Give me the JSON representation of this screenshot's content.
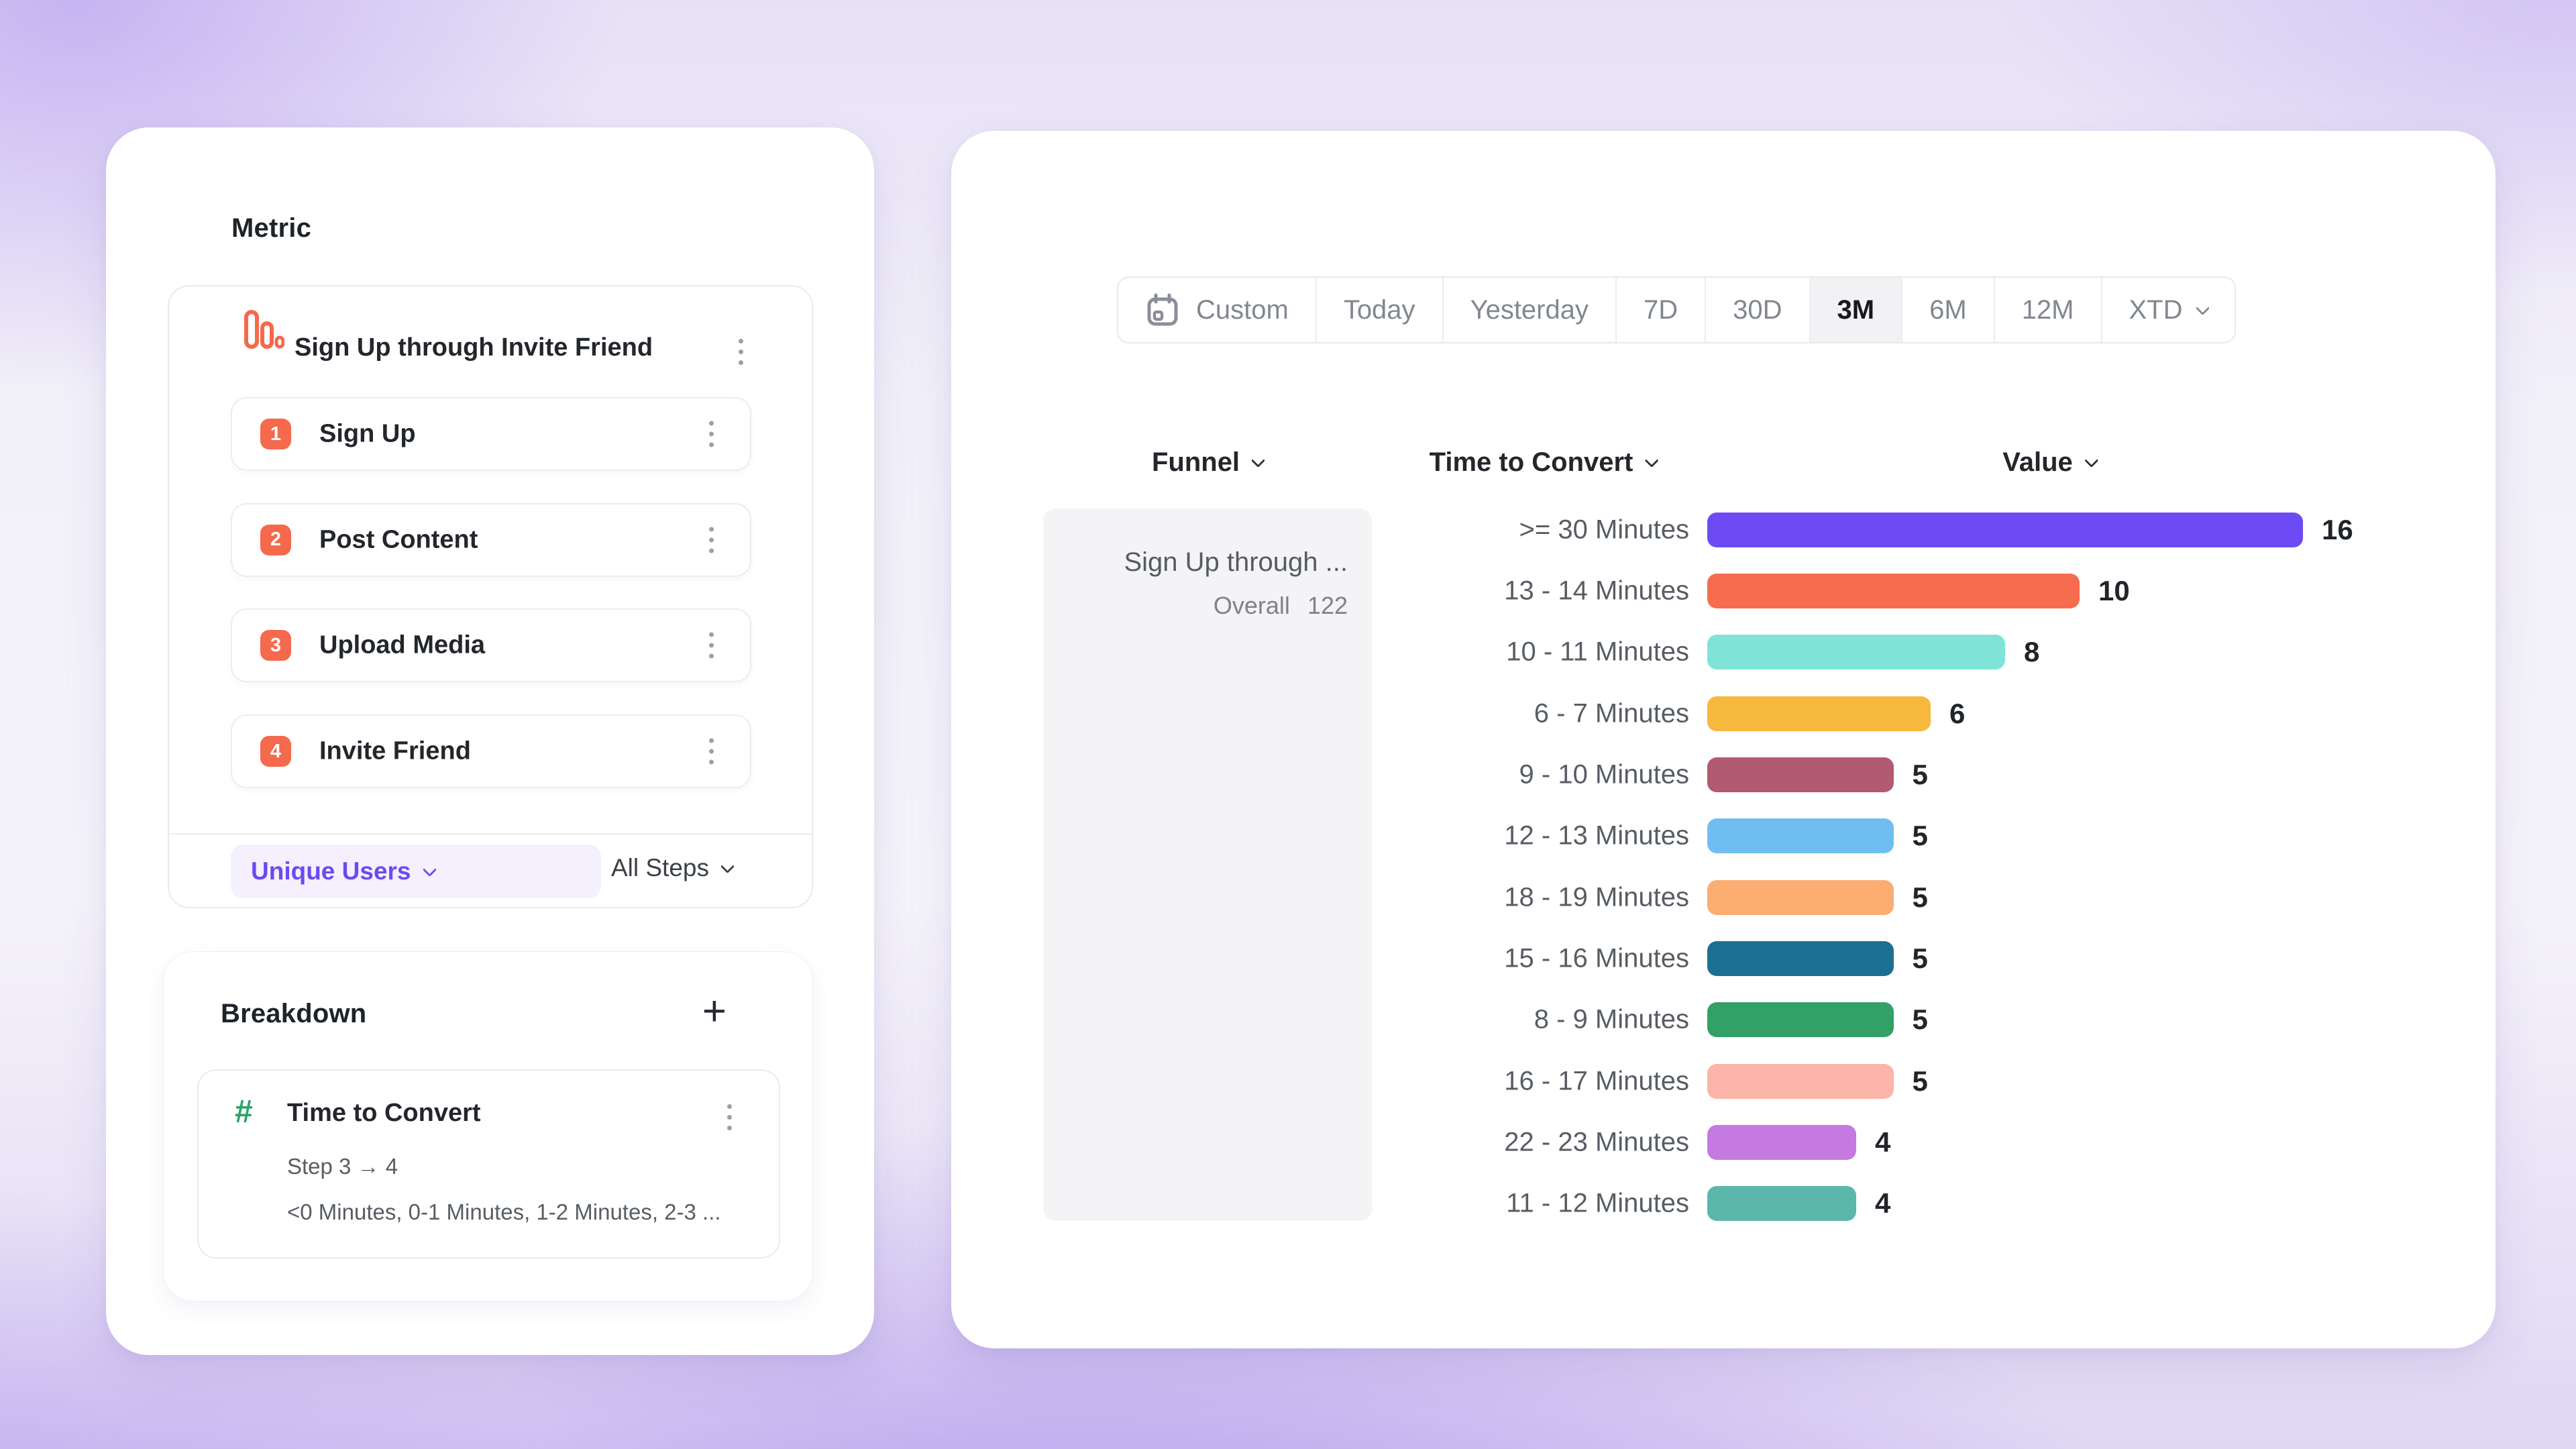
{
  "left_panel": {
    "metric_section": {
      "title": "Metric",
      "funnel_card": {
        "title": "Sign Up through Invite Friend",
        "steps": [
          {
            "number": "1",
            "label": "Sign Up"
          },
          {
            "number": "2",
            "label": "Post Content"
          },
          {
            "number": "3",
            "label": "Upload Media"
          },
          {
            "number": "4",
            "label": "Invite Friend"
          }
        ],
        "footer": {
          "counting_method": "Unique Users",
          "steps_scope": "All Steps"
        }
      }
    },
    "breakdown_section": {
      "title": "Breakdown",
      "property_card": {
        "title": "Time to Convert",
        "subtitle": "Step 3 → 4",
        "values_preview": "<0 Minutes, 0-1 Minutes, 1-2 Minutes, 2-3 ..."
      }
    }
  },
  "right_panel": {
    "date_range_picker": {
      "selected": "3M",
      "options": [
        {
          "label": "Custom",
          "icon": "calendar-icon"
        },
        {
          "label": "Today"
        },
        {
          "label": "Yesterday"
        },
        {
          "label": "7D"
        },
        {
          "label": "30D"
        },
        {
          "label": "3M"
        },
        {
          "label": "6M"
        },
        {
          "label": "12M"
        },
        {
          "label": "XTD",
          "icon": "chevron-down-icon"
        }
      ]
    },
    "table": {
      "column_headers": [
        {
          "label": "Funnel"
        },
        {
          "label": "Time to Convert"
        },
        {
          "label": "Value"
        }
      ],
      "funnel_cell": {
        "name": "Sign Up through ...",
        "overall_label": "Overall",
        "overall_value": "122"
      }
    }
  },
  "chart_data": {
    "type": "bar",
    "orientation": "horizontal",
    "title": "",
    "xlabel": "Value",
    "ylabel": "Time to Convert",
    "xlim": [
      0,
      16
    ],
    "grid": false,
    "legend": "none",
    "categories": [
      ">= 30 Minutes",
      "13 - 14 Minutes",
      "10 - 11 Minutes",
      "6 - 7 Minutes",
      "9 - 10 Minutes",
      "12 - 13 Minutes",
      "18 - 19 Minutes",
      "15 - 16 Minutes",
      "8 - 9 Minutes",
      "16 - 17 Minutes",
      "22 - 23 Minutes",
      "11 - 12 Minutes"
    ],
    "values": [
      16,
      10,
      8,
      6,
      5,
      5,
      5,
      5,
      5,
      5,
      4,
      4
    ],
    "bar_colors": [
      "#6C4BF4",
      "#F76C4E",
      "#7FE4D7",
      "#F6B83D",
      "#B15A70",
      "#70BEF1",
      "#FBAD72",
      "#1B7092",
      "#33A066",
      "#FCB5A9",
      "#C47AE0",
      "#5BB7AA"
    ],
    "striped_bar_index": 2
  },
  "colors": {
    "accent_purple": "#6A4AF2",
    "step_badge_orange": "#F5694C",
    "hash_green": "#2DA26B",
    "selected_tab_bg": "#F2F2F4",
    "funnel_cell_bg": "#F4F4F6"
  }
}
